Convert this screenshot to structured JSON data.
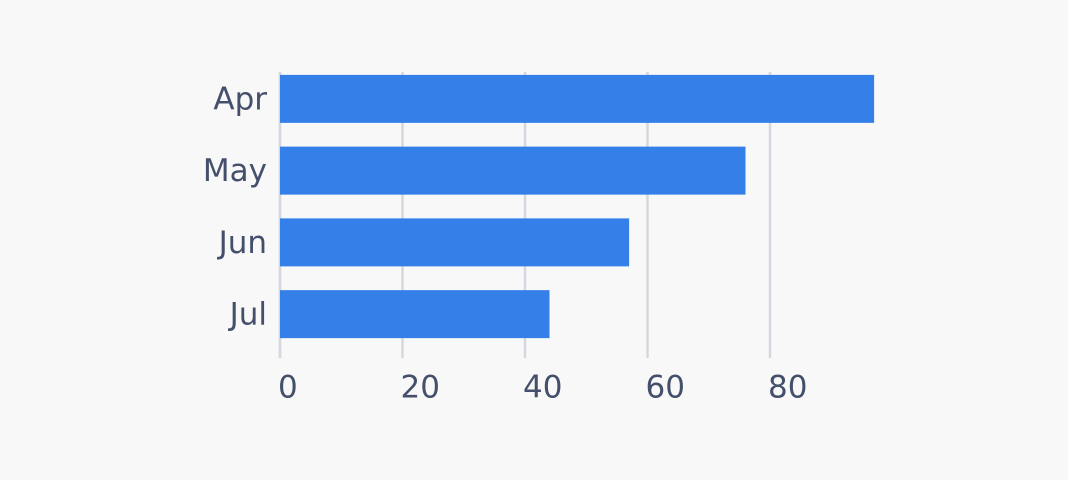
{
  "chart_data": {
    "type": "bar",
    "orientation": "horizontal",
    "categories": [
      "Apr",
      "May",
      "Jun",
      "Jul"
    ],
    "values": [
      97,
      76,
      57,
      44
    ],
    "color": "#3580e8",
    "xlim": [
      0,
      100
    ],
    "xticks": [
      0,
      20,
      40,
      60,
      80
    ],
    "grid": true
  }
}
